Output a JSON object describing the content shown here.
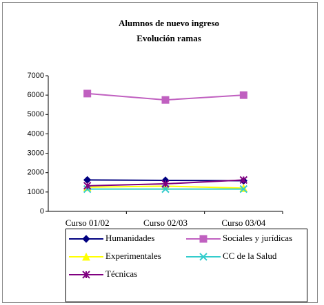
{
  "chart_data": {
    "type": "line",
    "title": "Alumnos de nuevo ingreso",
    "subtitle": "Evolución ramas",
    "categories": [
      "Curso 01/02",
      "Curso 02/03",
      "Curso 03/04"
    ],
    "ylim": [
      0,
      7000
    ],
    "yticks": [
      0,
      1000,
      2000,
      3000,
      4000,
      5000,
      6000,
      7000
    ],
    "grid": false,
    "legend": "bottom",
    "series": [
      {
        "name": "Humanidades",
        "color": "#000080",
        "marker": "diamond",
        "values": [
          1620,
          1600,
          1580
        ]
      },
      {
        "name": "Sociales y jurídicas",
        "color": "#c060c0",
        "marker": "square",
        "values": [
          6080,
          5750,
          6000
        ]
      },
      {
        "name": "Experimentales",
        "color": "#ffff00",
        "marker": "triangle",
        "values": [
          1250,
          1300,
          1200
        ]
      },
      {
        "name": "CC de la Salud",
        "color": "#33cccc",
        "marker": "x",
        "values": [
          1150,
          1150,
          1150
        ]
      },
      {
        "name": "Técnicas",
        "color": "#800080",
        "marker": "star",
        "values": [
          1320,
          1420,
          1620
        ]
      }
    ]
  }
}
